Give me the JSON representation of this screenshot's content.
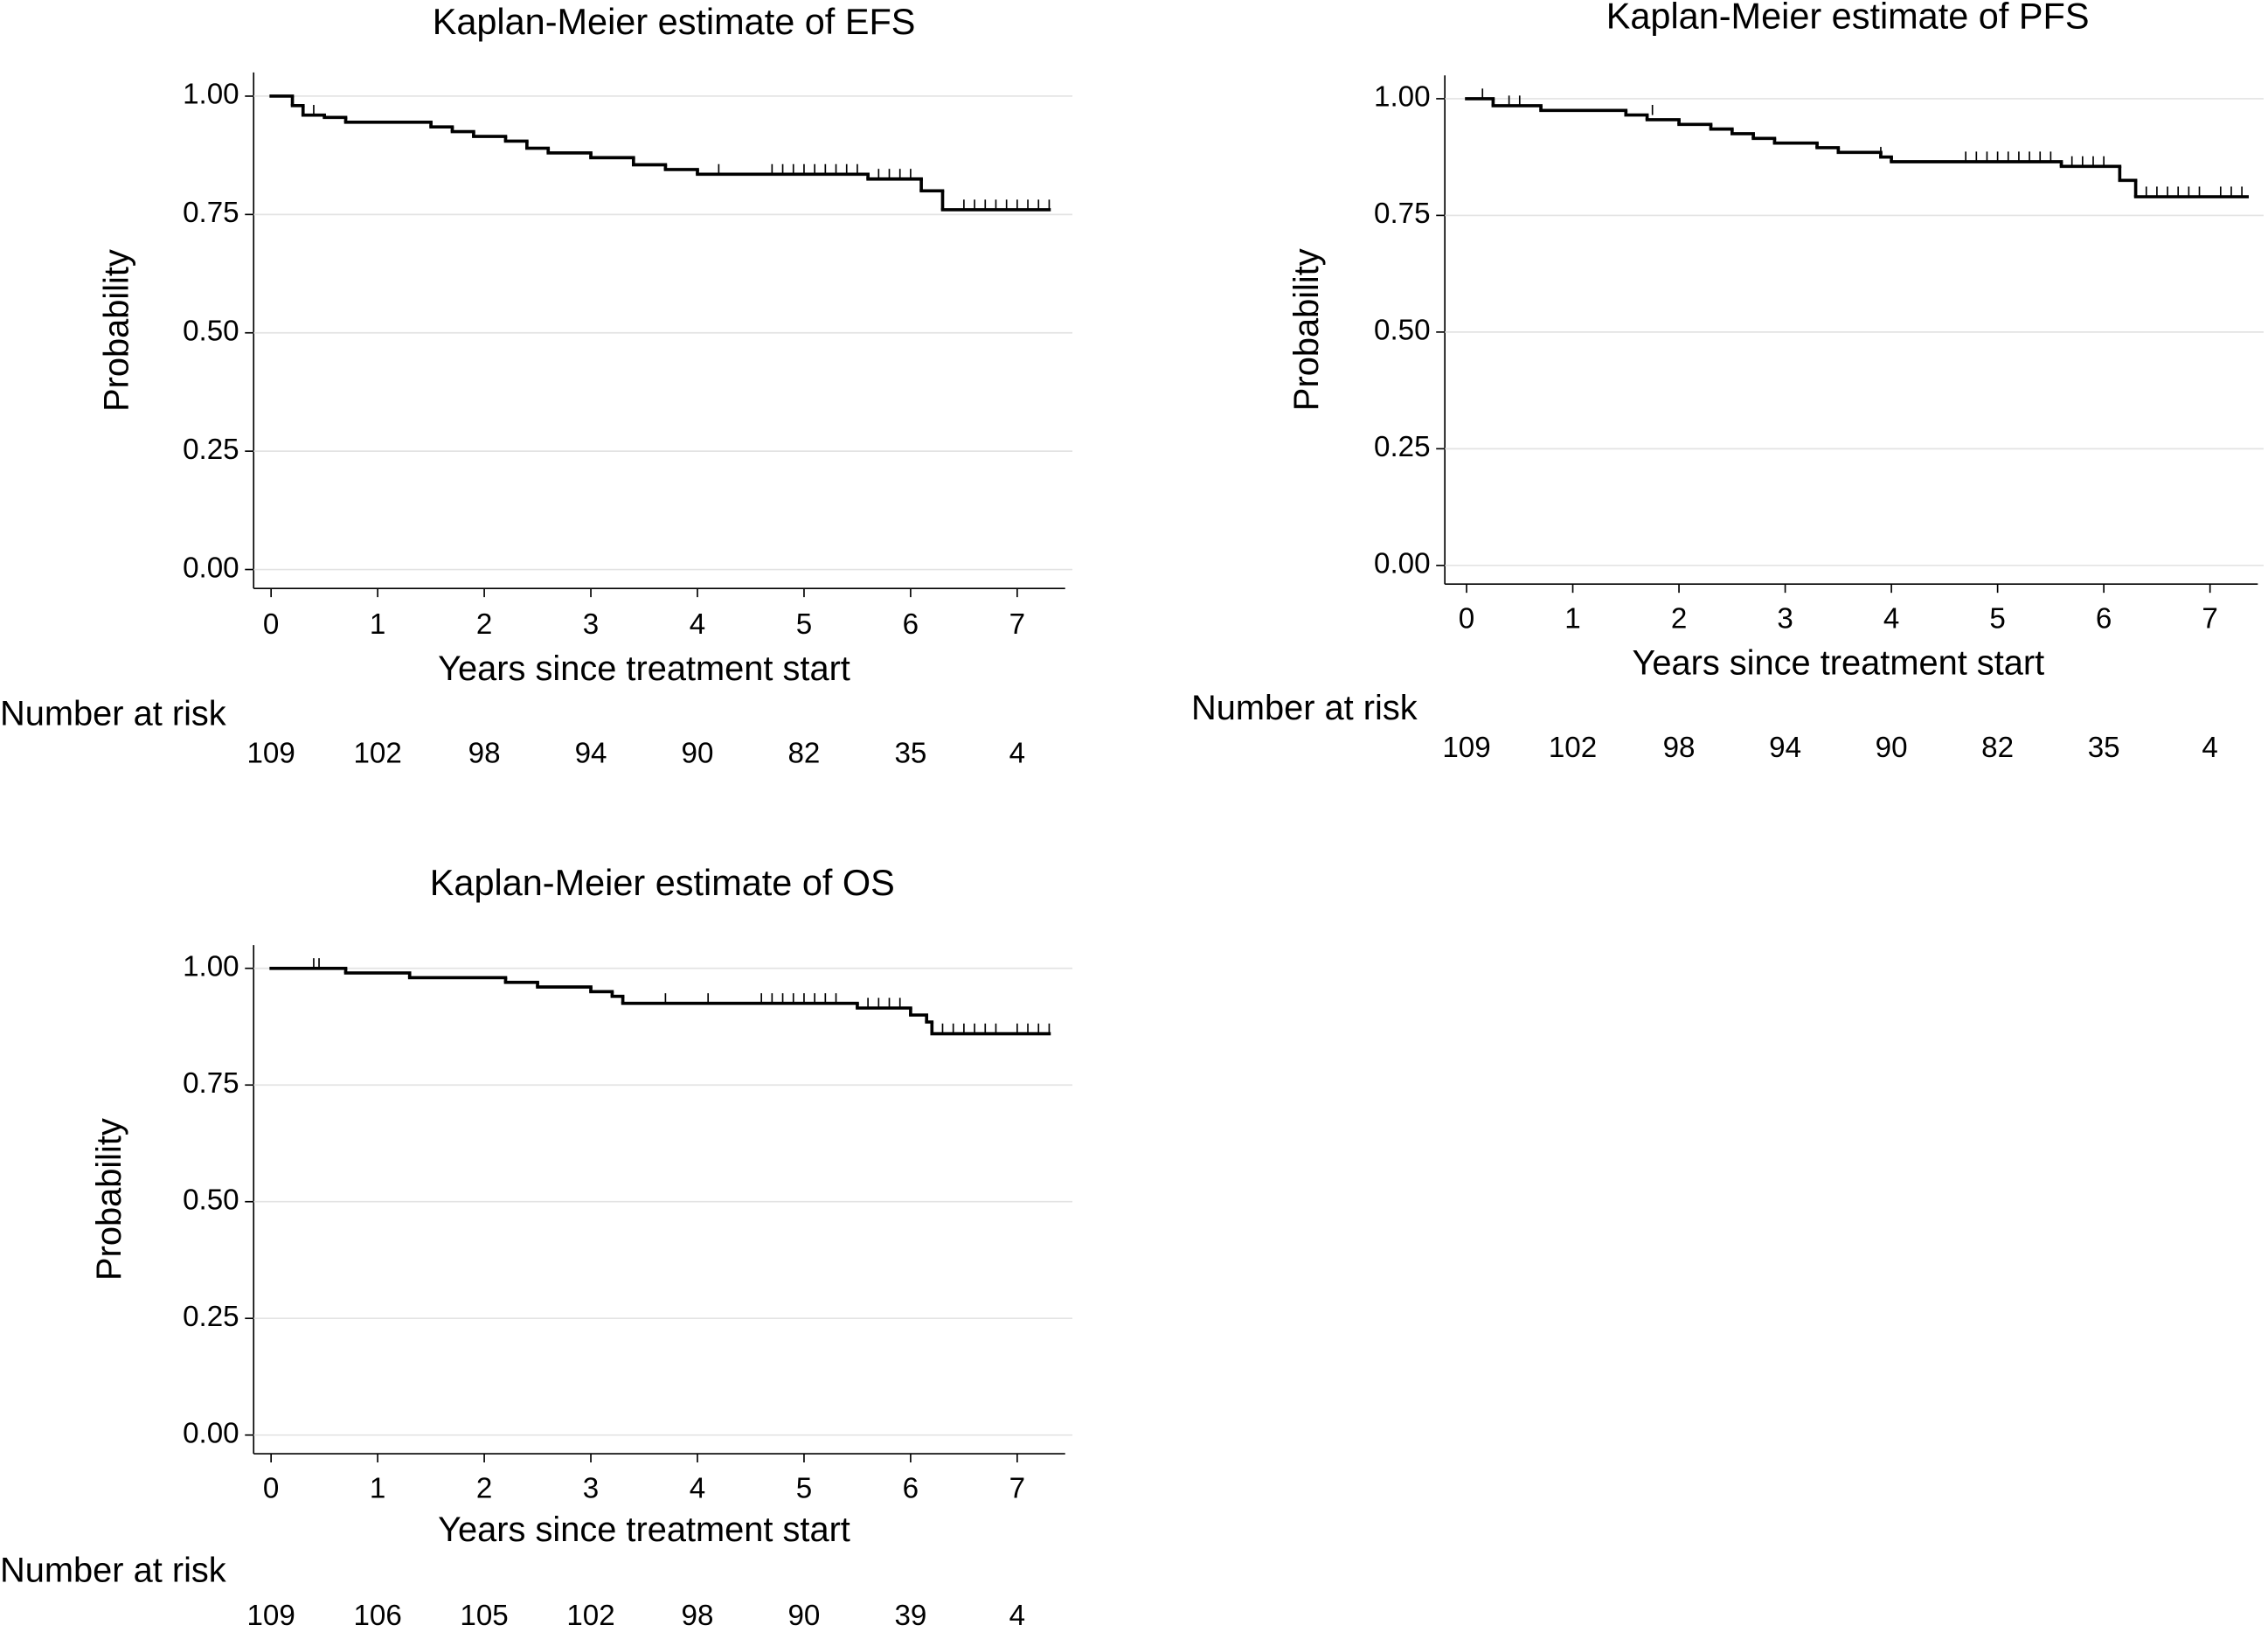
{
  "chart_data": [
    {
      "type": "step",
      "title": "Kaplan-Meier estimate of EFS",
      "xlabel": "Years since treatment start",
      "ylabel": "Probability",
      "x": [
        0,
        0.2,
        0.3,
        0.5,
        0.7,
        1.5,
        1.7,
        1.9,
        2.2,
        2.4,
        2.6,
        3.0,
        3.4,
        3.7,
        4.0,
        5.6,
        6.1,
        6.3,
        7.3
      ],
      "values": [
        1.0,
        0.98,
        0.96,
        0.955,
        0.945,
        0.935,
        0.925,
        0.915,
        0.905,
        0.89,
        0.88,
        0.87,
        0.855,
        0.845,
        0.835,
        0.825,
        0.8,
        0.76,
        0.76
      ],
      "censor_x": [
        0.4,
        4.2,
        4.7,
        4.8,
        4.9,
        5.0,
        5.1,
        5.2,
        5.3,
        5.4,
        5.5,
        5.7,
        5.8,
        5.9,
        6.0,
        6.5,
        6.6,
        6.7,
        6.8,
        6.9,
        7.0,
        7.1,
        7.2,
        7.3
      ],
      "censor_values": [
        0.96,
        0.835,
        0.835,
        0.835,
        0.835,
        0.835,
        0.835,
        0.835,
        0.835,
        0.835,
        0.835,
        0.825,
        0.825,
        0.825,
        0.825,
        0.76,
        0.76,
        0.76,
        0.76,
        0.76,
        0.76,
        0.76,
        0.76,
        0.76
      ],
      "color": "#000000",
      "grid": true,
      "xlim": [
        -0.15,
        7.45
      ],
      "ylim": [
        -0.04,
        1.05
      ],
      "xticks": [
        0,
        1,
        2,
        3,
        4,
        5,
        6,
        7
      ],
      "yticks": [
        {
          "value": 0,
          "label": "0.00"
        },
        {
          "value": 0.25,
          "label": "0.25"
        },
        {
          "value": 0.5,
          "label": "0.50"
        },
        {
          "value": 0.75,
          "label": "0.75"
        },
        {
          "value": 1,
          "label": "1.00"
        }
      ],
      "risk_title": "Number at risk",
      "at_risk": [
        109,
        102,
        98,
        94,
        90,
        82,
        35,
        4
      ]
    },
    {
      "type": "step",
      "title": "Kaplan-Meier estimate of PFS",
      "xlabel": "Years since treatment start",
      "ylabel": "Probability",
      "x": [
        0,
        0.25,
        0.7,
        1.5,
        1.7,
        2.0,
        2.3,
        2.5,
        2.7,
        2.9,
        3.3,
        3.5,
        3.9,
        4.0,
        5.6,
        6.15,
        6.3,
        7.35
      ],
      "values": [
        1.0,
        0.985,
        0.975,
        0.965,
        0.955,
        0.945,
        0.935,
        0.925,
        0.915,
        0.905,
        0.895,
        0.885,
        0.875,
        0.865,
        0.855,
        0.825,
        0.79,
        0.79
      ],
      "censor_x": [
        0.15,
        0.4,
        0.5,
        1.75,
        3.9,
        4.7,
        4.8,
        4.9,
        5.0,
        5.1,
        5.2,
        5.3,
        5.4,
        5.5,
        5.7,
        5.8,
        5.9,
        6.0,
        6.4,
        6.5,
        6.6,
        6.7,
        6.8,
        6.9,
        7.1,
        7.2,
        7.3
      ],
      "censor_values": [
        1.0,
        0.985,
        0.985,
        0.965,
        0.875,
        0.865,
        0.865,
        0.865,
        0.865,
        0.865,
        0.865,
        0.865,
        0.865,
        0.865,
        0.855,
        0.855,
        0.855,
        0.855,
        0.79,
        0.79,
        0.79,
        0.79,
        0.79,
        0.79,
        0.79,
        0.79,
        0.79
      ],
      "color": "#000000",
      "grid": true,
      "xlim": [
        -0.15,
        7.45
      ],
      "ylim": [
        -0.04,
        1.05
      ],
      "xticks": [
        0,
        1,
        2,
        3,
        4,
        5,
        6,
        7
      ],
      "yticks": [
        {
          "value": 0,
          "label": "0.00"
        },
        {
          "value": 0.25,
          "label": "0.25"
        },
        {
          "value": 0.5,
          "label": "0.50"
        },
        {
          "value": 0.75,
          "label": "0.75"
        },
        {
          "value": 1,
          "label": "1.00"
        }
      ],
      "risk_title": "Number at risk",
      "at_risk": [
        109,
        102,
        98,
        94,
        90,
        82,
        35,
        4
      ]
    },
    {
      "type": "step",
      "title": "Kaplan-Meier estimate of OS",
      "xlabel": "Years since treatment start",
      "ylabel": "Probability",
      "x": [
        0,
        0.7,
        1.3,
        2.2,
        2.5,
        3.0,
        3.2,
        3.3,
        5.5,
        6.0,
        6.15,
        6.2,
        7.3
      ],
      "values": [
        1.0,
        0.99,
        0.98,
        0.97,
        0.96,
        0.95,
        0.94,
        0.925,
        0.915,
        0.9,
        0.885,
        0.86,
        0.86
      ],
      "censor_x": [
        0.4,
        0.45,
        3.7,
        4.1,
        4.6,
        4.7,
        4.8,
        4.9,
        5.0,
        5.1,
        5.2,
        5.3,
        5.6,
        5.7,
        5.8,
        5.9,
        6.3,
        6.4,
        6.5,
        6.6,
        6.7,
        6.8,
        7.0,
        7.1,
        7.2,
        7.3
      ],
      "censor_values": [
        1.0,
        1.0,
        0.925,
        0.925,
        0.925,
        0.925,
        0.925,
        0.925,
        0.925,
        0.925,
        0.925,
        0.925,
        0.915,
        0.915,
        0.915,
        0.915,
        0.86,
        0.86,
        0.86,
        0.86,
        0.86,
        0.86,
        0.86,
        0.86,
        0.86,
        0.86
      ],
      "color": "#000000",
      "grid": true,
      "xlim": [
        -0.15,
        7.45
      ],
      "ylim": [
        -0.04,
        1.05
      ],
      "xticks": [
        0,
        1,
        2,
        3,
        4,
        5,
        6,
        7
      ],
      "yticks": [
        {
          "value": 0,
          "label": "0.00"
        },
        {
          "value": 0.25,
          "label": "0.25"
        },
        {
          "value": 0.5,
          "label": "0.50"
        },
        {
          "value": 0.75,
          "label": "0.75"
        },
        {
          "value": 1,
          "label": "1.00"
        }
      ],
      "risk_title": "Number at risk",
      "at_risk": [
        109,
        106,
        105,
        102,
        98,
        90,
        39,
        4
      ]
    }
  ]
}
